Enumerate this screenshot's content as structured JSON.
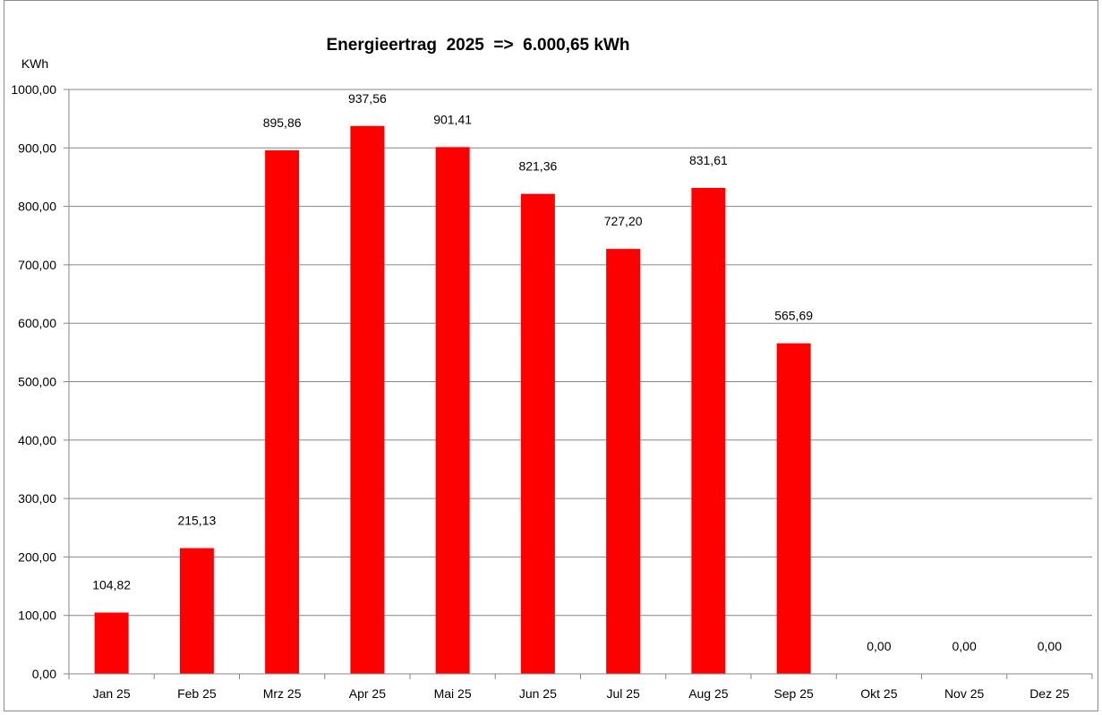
{
  "chart_data": {
    "type": "bar",
    "title": "Energieertrag  2025  =>  6.000,65 kWh",
    "xlabel": "",
    "ylabel": "KWh",
    "ylim": [
      0,
      1000
    ],
    "ytick_step": 100,
    "ytick_labels": [
      "0,00",
      "100,00",
      "200,00",
      "300,00",
      "400,00",
      "500,00",
      "600,00",
      "700,00",
      "800,00",
      "900,00",
      "1000,00"
    ],
    "grid": true,
    "legend": "none",
    "categories": [
      "Jan 25",
      "Feb 25",
      "Mrz 25",
      "Apr 25",
      "Mai 25",
      "Jun 25",
      "Jul 25",
      "Aug 25",
      "Sep 25",
      "Okt 25",
      "Nov 25",
      "Dez 25"
    ],
    "values": [
      104.82,
      215.13,
      895.86,
      937.56,
      901.41,
      821.36,
      727.2,
      831.61,
      565.69,
      0,
      0,
      0
    ],
    "data_labels": [
      "104,82",
      "215,13",
      "895,86",
      "937,56",
      "901,41",
      "821,36",
      "727,20",
      "831,61",
      "565,69",
      "0,00",
      "0,00",
      "0,00"
    ],
    "bar_color": "#ff0000"
  }
}
